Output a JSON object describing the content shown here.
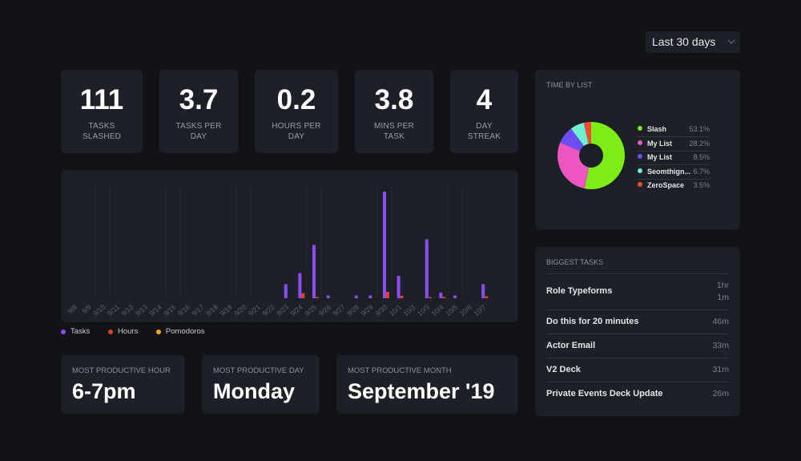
{
  "range_select": {
    "value": "Last 30 days"
  },
  "stats": [
    {
      "value": "111",
      "label_line1": "TASKS",
      "label_line2": "SLASHED"
    },
    {
      "value": "3.7",
      "label_line1": "TASKS PER",
      "label_line2": "DAY"
    },
    {
      "value": "0.2",
      "label_line1": "HOURS PER",
      "label_line2": "DAY"
    },
    {
      "value": "3.8",
      "label_line1": "MINS PER",
      "label_line2": "TASK"
    },
    {
      "value": "4",
      "label_line1": "DAY",
      "label_line2": "STREAK"
    }
  ],
  "chart_data": {
    "type": "bar",
    "title": "",
    "xlabel": "",
    "ylabel": "",
    "grid": true,
    "legend_position": "bottom-left",
    "categories": [
      "9/8",
      "9/9",
      "9/10",
      "9/11",
      "9/12",
      "9/13",
      "9/14",
      "9/15",
      "9/16",
      "9/17",
      "9/18",
      "9/19",
      "9/20",
      "9/21",
      "9/22",
      "9/23",
      "9/24",
      "9/25",
      "9/26",
      "9/27",
      "9/28",
      "9/29",
      "9/30",
      "10/1",
      "10/2",
      "10/3",
      "10/4",
      "10/5",
      "10/6",
      "10/7"
    ],
    "ylim": [
      0,
      40
    ],
    "series": [
      {
        "name": "Tasks",
        "color": "#8b4cf6",
        "values": [
          0,
          0,
          0,
          0,
          0,
          0,
          0,
          0,
          0,
          0,
          0,
          0,
          0,
          0,
          0,
          5,
          9,
          19,
          1,
          0,
          1,
          1,
          38,
          8,
          0,
          21,
          2,
          1,
          0,
          5
        ]
      },
      {
        "name": "Hours",
        "color": "#e0402a",
        "values": [
          0,
          0,
          0,
          0,
          0,
          0,
          0,
          0,
          0,
          0,
          0,
          0,
          0,
          0,
          0,
          0,
          2,
          0.3,
          0,
          0,
          0,
          0,
          2.5,
          1,
          0,
          0.3,
          0.5,
          0,
          0,
          0.8
        ]
      },
      {
        "name": "Pomodoros",
        "color": "#f5a524",
        "values": [
          0,
          0,
          0,
          0,
          0,
          0,
          0,
          0,
          0,
          0,
          0,
          0,
          0,
          0,
          0,
          0,
          0,
          0,
          0,
          0,
          0,
          0,
          0,
          0,
          0,
          0,
          0,
          0,
          0,
          0
        ]
      }
    ]
  },
  "productive": [
    {
      "label": "MOST PRODUCTIVE HOUR",
      "value": "6-7pm"
    },
    {
      "label": "MOST PRODUCTIVE DAY",
      "value": "Monday"
    },
    {
      "label": "MOST PRODUCTIVE MONTH",
      "value": "September '19"
    }
  ],
  "time_by_list": {
    "title": "TIME BY LIST",
    "items": [
      {
        "name": "Slash",
        "percent": "53.1%",
        "value": 53.1,
        "color": "#7ded17"
      },
      {
        "name": "My List",
        "percent": "28.2%",
        "value": 28.2,
        "color": "#ec56c0"
      },
      {
        "name": "My List",
        "percent": "8.5%",
        "value": 8.5,
        "color": "#6b4df6"
      },
      {
        "name": "Seomthign...",
        "percent": "6.7%",
        "value": 6.7,
        "color": "#6ef0d2"
      },
      {
        "name": "ZeroSpace",
        "percent": "3.5%",
        "value": 3.5,
        "color": "#ef4a32"
      }
    ]
  },
  "biggest_tasks": {
    "title": "BIGGEST TASKS",
    "items": [
      {
        "name": "Role Typeforms",
        "duration_line1": "1hr",
        "duration_line2": "1m"
      },
      {
        "name": "Do this for 20 minutes",
        "duration_line1": "46m"
      },
      {
        "name": "Actor Email",
        "duration_line1": "33m"
      },
      {
        "name": "V2 Deck",
        "duration_line1": "31m"
      },
      {
        "name": "Private Events Deck Update",
        "duration_line1": "26m"
      }
    ]
  }
}
